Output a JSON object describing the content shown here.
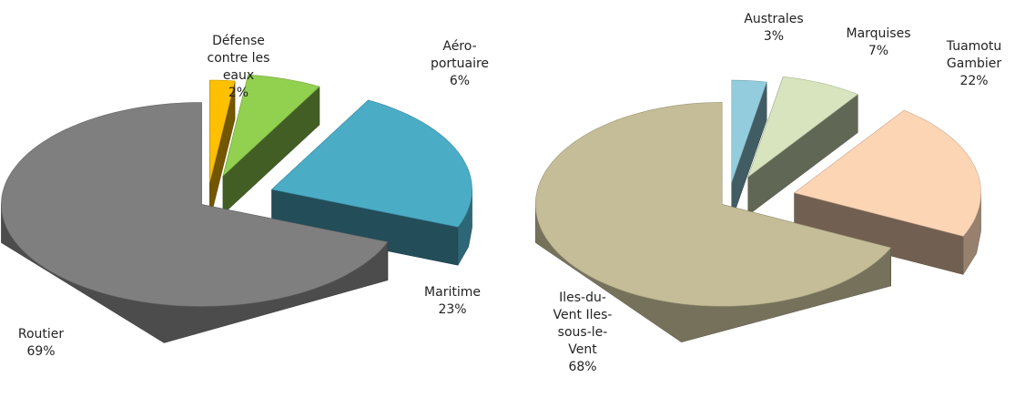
{
  "chart_data": [
    {
      "type": "pie3d",
      "categories": [
        "Défense contre les eaux",
        "Aéro-portuaire",
        "Maritime",
        "Routier"
      ],
      "values": [
        2,
        6,
        23,
        69
      ],
      "value_labels": [
        "2%",
        "6%",
        "23%",
        "69%"
      ],
      "colors": [
        "#ffc000",
        "#92d050",
        "#4bacc6",
        "#7f7f7f"
      ]
    },
    {
      "type": "pie3d",
      "categories": [
        "Australes",
        "Marquises",
        "Tuamotu Gambier",
        "Iles-du-Vent Iles-sous-le-Vent"
      ],
      "values": [
        3,
        7,
        22,
        68
      ],
      "value_labels": [
        "3%",
        "7%",
        "22%",
        "68%"
      ],
      "colors": [
        "#93cddd",
        "#d7e4bd",
        "#fcd5b5",
        "#c4bd97"
      ]
    }
  ]
}
